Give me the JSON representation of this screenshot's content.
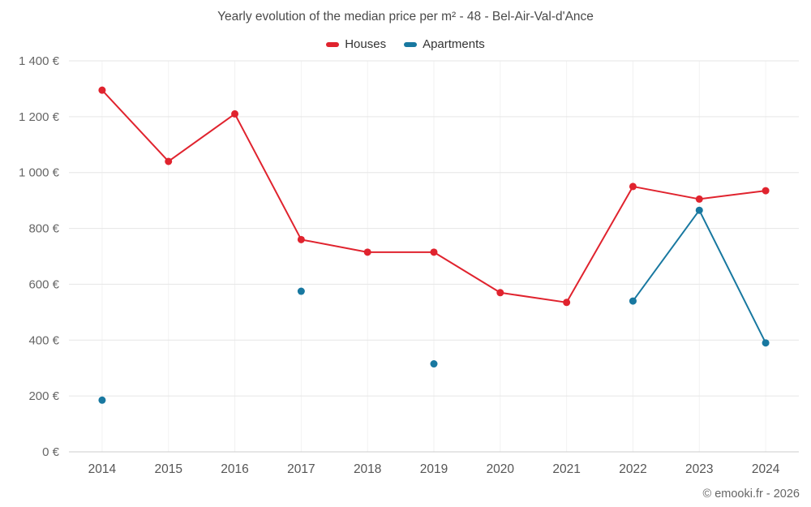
{
  "title": "Yearly evolution of the median price per m² - 48 - Bel-Air-Val-d'Ance",
  "legend": {
    "houses": "Houses",
    "apartments": "Apartments"
  },
  "copyright": "© emooki.fr - 2026",
  "colors": {
    "houses": "#e0232e",
    "apartments": "#1878a0",
    "grid": "#e6e6e6",
    "grid_vertical": "#f2f2f2",
    "axis_line": "#cccccc",
    "tick_label": "#666666",
    "x_label": "#555555"
  },
  "chart_data": {
    "type": "line",
    "title": "Yearly evolution of the median price per m² - 48 - Bel-Air-Val-d'Ance",
    "categories": [
      "2014",
      "2015",
      "2016",
      "2017",
      "2018",
      "2019",
      "2020",
      "2021",
      "2022",
      "2023",
      "2024"
    ],
    "series": [
      {
        "name": "Houses",
        "color": "#e0232e",
        "values": [
          1295,
          1040,
          1210,
          760,
          715,
          715,
          570,
          535,
          950,
          905,
          935
        ]
      },
      {
        "name": "Apartments",
        "color": "#1878a0",
        "values": [
          185,
          null,
          null,
          575,
          null,
          315,
          null,
          null,
          540,
          865,
          390
        ]
      }
    ],
    "xlabel": "",
    "ylabel": "",
    "ylim": [
      0,
      1400
    ],
    "ytick_step": 200,
    "ytick_format": "{value} €",
    "grid": true,
    "legend_position": "top",
    "annotations": [
      "© emooki.fr - 2026"
    ]
  }
}
